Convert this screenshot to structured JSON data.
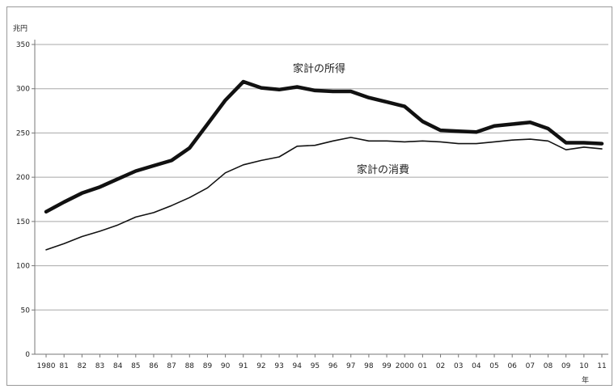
{
  "chart_data": {
    "type": "line",
    "ylabel": "兆円",
    "xlabel": "年",
    "ylim": [
      0,
      350
    ],
    "yticks": [
      0,
      50,
      100,
      150,
      200,
      250,
      300,
      350
    ],
    "grid": "horizontal",
    "legend": "none",
    "x": [
      "1980",
      "81",
      "82",
      "83",
      "84",
      "85",
      "86",
      "87",
      "88",
      "89",
      "90",
      "91",
      "92",
      "93",
      "94",
      "95",
      "96",
      "97",
      "98",
      "99",
      "2000",
      "01",
      "02",
      "03",
      "04",
      "05",
      "06",
      "07",
      "08",
      "09",
      "10",
      "11"
    ],
    "series": [
      {
        "name": "家計の所得",
        "style": "thick",
        "color": "#111111",
        "values": [
          161,
          172,
          182,
          189,
          198,
          207,
          213,
          219,
          233,
          260,
          287,
          308,
          301,
          299,
          302,
          298,
          297,
          297,
          290,
          285,
          280,
          263,
          253,
          252,
          251,
          258,
          260,
          262,
          255,
          239,
          239,
          238
        ]
      },
      {
        "name": "家計の消費",
        "style": "thin",
        "color": "#111111",
        "values": [
          118,
          125,
          133,
          139,
          146,
          155,
          160,
          168,
          177,
          188,
          205,
          214,
          219,
          223,
          235,
          236,
          241,
          245,
          241,
          241,
          240,
          241,
          240,
          238,
          238,
          240,
          242,
          243,
          241,
          231,
          234,
          232
        ]
      }
    ],
    "annotations": [
      {
        "text": "家計の所得",
        "series": 0
      },
      {
        "text": "家計の消費",
        "series": 1
      }
    ]
  }
}
